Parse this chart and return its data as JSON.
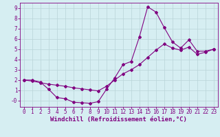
{
  "xlabel": "Windchill (Refroidissement éolien,°C)",
  "ylabel": "",
  "xlim": [
    -0.5,
    23.5
  ],
  "ylim": [
    -0.6,
    9.5
  ],
  "xticks": [
    0,
    1,
    2,
    3,
    4,
    5,
    6,
    7,
    8,
    9,
    10,
    11,
    12,
    13,
    14,
    15,
    16,
    17,
    18,
    19,
    20,
    21,
    22,
    23
  ],
  "yticks": [
    0,
    1,
    2,
    3,
    4,
    5,
    6,
    7,
    8,
    9
  ],
  "ytick_labels": [
    "-0",
    "1",
    "2",
    "3",
    "4",
    "5",
    "6",
    "7",
    "8",
    "9"
  ],
  "line1_x": [
    0,
    1,
    2,
    3,
    4,
    5,
    6,
    7,
    8,
    9,
    10,
    11,
    12,
    13,
    14,
    15,
    16,
    17,
    18,
    19,
    20,
    21,
    22,
    23
  ],
  "line1_y": [
    2.0,
    2.0,
    1.8,
    1.1,
    0.3,
    0.2,
    -0.15,
    -0.2,
    -0.25,
    -0.1,
    1.1,
    2.2,
    3.5,
    3.8,
    6.2,
    9.1,
    8.6,
    7.1,
    5.7,
    5.1,
    5.9,
    4.8,
    4.8,
    5.0
  ],
  "line2_x": [
    0,
    1,
    2,
    3,
    4,
    5,
    6,
    7,
    8,
    9,
    10,
    11,
    12,
    13,
    14,
    15,
    16,
    17,
    18,
    19,
    20,
    21,
    22,
    23
  ],
  "line2_y": [
    2.0,
    1.9,
    1.75,
    1.6,
    1.5,
    1.4,
    1.25,
    1.15,
    1.05,
    0.95,
    1.4,
    2.0,
    2.6,
    3.0,
    3.5,
    4.2,
    4.9,
    5.5,
    5.1,
    4.9,
    5.2,
    4.5,
    4.7,
    5.0
  ],
  "line_color": "#800080",
  "bg_color": "#d6eef2",
  "grid_color": "#b8d4d8",
  "axis_color": "#800080",
  "tick_label_color": "#800080",
  "xlabel_color": "#800080",
  "marker": "D",
  "markersize": 2.0,
  "linewidth": 0.8,
  "xlabel_fontsize": 6.5,
  "tick_fontsize": 5.5
}
